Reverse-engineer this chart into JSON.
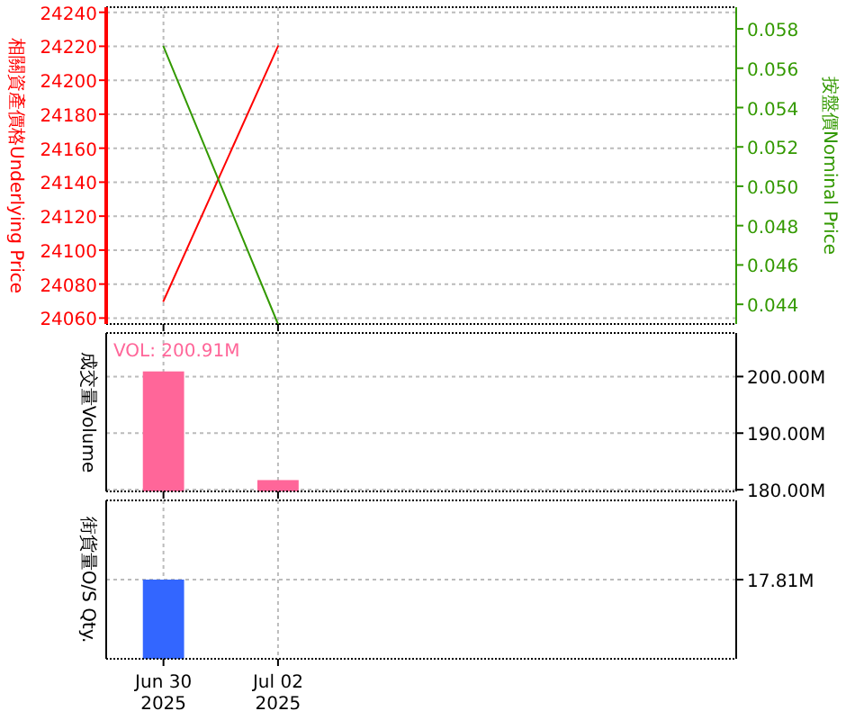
{
  "chart_data": [
    {
      "type": "line",
      "x": [
        "2025-06-30",
        "2025-07-02"
      ],
      "xlim": [
        "2025-06-29",
        "2025-07-10"
      ],
      "xticks": [
        {
          "value": "2025-06-30",
          "label": null
        },
        {
          "value": "2025-07-02",
          "label": null
        }
      ],
      "tick_labels": "y",
      "ylabel": "相關資產價格Underlying Price",
      "y2label": "按盤價Nominal Price",
      "ylim": [
        24056.5,
        24243
      ],
      "yticks": [
        24060,
        24080,
        24100,
        24120,
        24140,
        24160,
        24180,
        24200,
        24220,
        24240
      ],
      "y2lim": [
        0.043,
        0.0591
      ],
      "y2ticks": [
        {
          "value": 0.044,
          "label": "0.044"
        },
        {
          "value": 0.046,
          "label": "0.046"
        },
        {
          "value": 0.048,
          "label": "0.048"
        },
        {
          "value": 0.05,
          "label": "0.050"
        },
        {
          "value": 0.052,
          "label": "0.052"
        },
        {
          "value": 0.054,
          "label": "0.054"
        },
        {
          "value": 0.056,
          "label": "0.056"
        },
        {
          "value": 0.058,
          "label": "0.058"
        }
      ],
      "grid": true,
      "series": [
        {
          "color": "#ff0000",
          "values": [
            24070,
            24220
          ]
        },
        {
          "color": "#339900",
          "axis": "y2",
          "values": [
            0.0571,
            0.043
          ]
        }
      ]
    },
    {
      "type": "bar",
      "x": [
        "2025-06-30",
        "2025-07-02"
      ],
      "xlim": [
        "2025-06-29",
        "2025-07-10"
      ],
      "xticks": [
        {
          "value": "2025-06-30",
          "label": null
        },
        {
          "value": "2025-07-02",
          "label": null
        }
      ],
      "tick_labels": "y",
      "ylabel": "成交量Volume",
      "y2lim": [
        179700000,
        207700000
      ],
      "y2ticks": [
        {
          "value": 180000000,
          "label": "180.00M"
        },
        {
          "value": 190000000,
          "label": "190.00M"
        },
        {
          "value": 200000000,
          "label": "200.00M"
        }
      ],
      "grid": true,
      "annotations": [
        "VOL: 200.91M"
      ],
      "series": [
        {
          "color": "#ff6699",
          "axis": "y2",
          "values": [
            200910000,
            181700000
          ]
        }
      ]
    },
    {
      "type": "bar",
      "x": [
        "2025-06-30"
      ],
      "xlim": [
        "2025-06-29",
        "2025-07-10"
      ],
      "xticks": [
        {
          "value": "2025-06-30",
          "label": "Jun 30 2025"
        },
        {
          "value": "2025-07-02",
          "label": "Jul 02 2025"
        }
      ],
      "ylabel": "街貨量O/S Qty.",
      "y2lim": [
        0,
        35620000
      ],
      "y2ticks": [
        {
          "value": 17810000,
          "label": "17.81M"
        }
      ],
      "grid": true,
      "series": [
        {
          "color": "#3366ff",
          "axis": "y2",
          "values": [
            17810000
          ]
        }
      ]
    }
  ]
}
